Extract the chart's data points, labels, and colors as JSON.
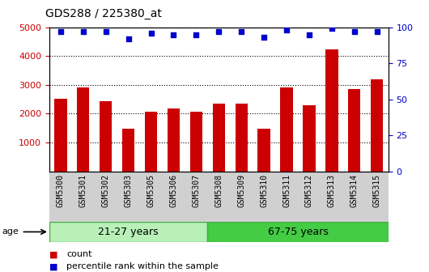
{
  "title": "GDS288 / 225380_at",
  "categories": [
    "GSM5300",
    "GSM5301",
    "GSM5302",
    "GSM5303",
    "GSM5305",
    "GSM5306",
    "GSM5307",
    "GSM5308",
    "GSM5309",
    "GSM5310",
    "GSM5311",
    "GSM5312",
    "GSM5313",
    "GSM5314",
    "GSM5315"
  ],
  "counts": [
    2530,
    2920,
    2430,
    1490,
    2080,
    2190,
    2060,
    2360,
    2340,
    1490,
    2920,
    2300,
    4230,
    2860,
    3200
  ],
  "percentiles": [
    97,
    97,
    97,
    92,
    96,
    95,
    95,
    97,
    97,
    93,
    98,
    95,
    99,
    97,
    97
  ],
  "group1_label": "21-27 years",
  "group1_count": 7,
  "group2_label": "67-75 years",
  "group2_count": 8,
  "age_label": "age",
  "bar_color": "#cc0000",
  "dot_color": "#0000cc",
  "ylim_left": [
    0,
    5000
  ],
  "ylim_right": [
    0,
    100
  ],
  "yticks_left": [
    1000,
    2000,
    3000,
    4000,
    5000
  ],
  "yticks_right": [
    0,
    25,
    50,
    75,
    100
  ],
  "group1_bg": "#b8f0b8",
  "group2_bg": "#44cc44",
  "tick_area_bg": "#d0d0d0",
  "legend_count_label": "count",
  "legend_pct_label": "percentile rank within the sample"
}
